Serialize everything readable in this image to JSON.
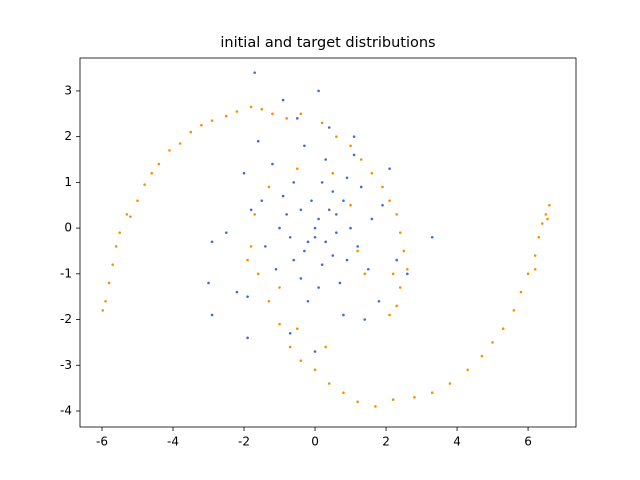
{
  "chart_data": {
    "type": "scatter",
    "title": "initial and target distributions",
    "xlim": [
      -6.62,
      7.35
    ],
    "ylim": [
      -4.35,
      3.72
    ],
    "xticks": [
      -6,
      -4,
      -2,
      0,
      2,
      4,
      6
    ],
    "yticks": [
      -4,
      -3,
      -2,
      -1,
      0,
      1,
      2,
      3
    ],
    "series": [
      {
        "color": "#ff8c00",
        "x": [
          -5.98,
          -5.9,
          -5.8,
          -5.7,
          -5.6,
          -5.5,
          -5.3,
          -5.2,
          -5.0,
          -4.8,
          -4.6,
          -4.4,
          -4.1,
          -3.8,
          -3.5,
          -3.2,
          -2.9,
          -2.5,
          -2.2,
          -1.8,
          -1.5,
          -1.2,
          -0.8,
          -0.4,
          0.2,
          0.6,
          1.0,
          1.3,
          1.6,
          1.9,
          2.1,
          2.3,
          2.4,
          2.5,
          2.6,
          2.4,
          2.3,
          2.1,
          1.4,
          1.2,
          1.0,
          0.5,
          -0.5,
          -1.3,
          -1.7,
          -1.8,
          -1.6,
          -1.3,
          -1.0,
          -0.7,
          -0.4,
          0.0,
          0.4,
          0.8,
          1.2,
          1.7,
          2.2,
          2.8,
          3.3,
          3.8,
          4.3,
          4.7,
          5.0,
          5.3,
          5.6,
          5.8,
          6.0,
          6.2,
          6.3,
          6.4,
          6.5,
          6.6,
          6.55,
          6.2,
          2.2,
          -1.9,
          -1.0,
          0.3,
          -0.5
        ],
        "y": [
          -1.8,
          -1.6,
          -1.2,
          -0.8,
          -0.4,
          -0.1,
          0.3,
          0.25,
          0.6,
          0.95,
          1.2,
          1.4,
          1.7,
          1.85,
          2.1,
          2.25,
          2.35,
          2.45,
          2.55,
          2.65,
          2.6,
          2.5,
          2.4,
          2.5,
          2.3,
          2.0,
          1.8,
          1.5,
          1.2,
          0.9,
          0.6,
          0.3,
          -0.1,
          -0.5,
          -0.9,
          -1.3,
          -1.7,
          -1.9,
          -1.0,
          -0.5,
          0.5,
          1.2,
          1.3,
          0.9,
          0.3,
          -0.4,
          -1.0,
          -1.6,
          -2.1,
          -2.6,
          -2.9,
          -3.1,
          -3.4,
          -3.6,
          -3.8,
          -3.9,
          -3.75,
          -3.7,
          -3.6,
          -3.4,
          -3.1,
          -2.8,
          -2.5,
          -2.2,
          -1.8,
          -1.4,
          -1.0,
          -0.6,
          -0.2,
          0.1,
          0.3,
          0.5,
          0.2,
          -0.9,
          -1.0,
          -0.7,
          -1.3,
          -2.6,
          -2.2
        ]
      },
      {
        "color": "#4169e1",
        "x": [
          0.1,
          -0.3,
          0.5,
          -0.8,
          1.2,
          -1.1,
          0.3,
          -0.2,
          0.9,
          -1.5,
          1.6,
          0.0,
          -0.6,
          0.7,
          -0.4,
          0.2,
          1.0,
          -1.0,
          0.4,
          -0.5,
          0.1,
          -1.7,
          -0.9,
          1.1,
          2.1,
          -2.0,
          -2.2,
          -2.9,
          -3.0,
          3.3,
          2.6,
          1.8,
          -1.9,
          -1.9,
          0.8,
          1.4,
          -0.7,
          0.0,
          -2.9,
          -1.8,
          0.6,
          -0.1,
          0.3,
          -0.7,
          0.8,
          -0.3,
          0.5,
          1.3,
          -1.2,
          0.2,
          -0.4,
          1.5,
          -1.4,
          0.0,
          0.6,
          -0.9,
          0.4,
          -0.2,
          1.9,
          -2.5,
          2.3,
          0.1,
          -0.6,
          1.1,
          -1.6,
          0.9
        ],
        "y": [
          0.2,
          -0.5,
          0.8,
          0.3,
          -0.4,
          -0.9,
          1.5,
          -1.6,
          1.1,
          0.6,
          0.2,
          -0.2,
          1.0,
          -1.2,
          0.4,
          -0.8,
          0.0,
          0.0,
          2.2,
          2.4,
          3.0,
          3.4,
          2.8,
          2.0,
          1.3,
          1.2,
          -1.4,
          -0.3,
          -1.2,
          -0.2,
          -1.0,
          -1.6,
          -1.5,
          -2.4,
          -1.9,
          -2.0,
          -2.3,
          -2.7,
          -1.9,
          0.4,
          0.3,
          0.6,
          -0.3,
          -0.2,
          0.6,
          1.8,
          -0.6,
          0.9,
          1.4,
          1.0,
          -1.1,
          -0.9,
          -0.4,
          0.0,
          -0.1,
          0.7,
          0.4,
          -0.3,
          0.5,
          -0.1,
          -0.7,
          -1.3,
          -0.7,
          1.6,
          1.9,
          -0.7
        ]
      }
    ]
  }
}
